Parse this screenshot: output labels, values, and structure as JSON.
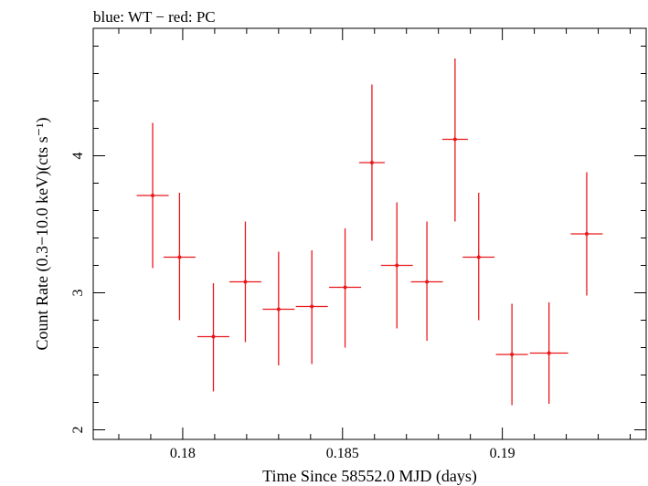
{
  "chart_data": {
    "type": "scatter",
    "title": "blue: WT − red: PC",
    "xlabel": "Time Since 58552.0 MJD (days)",
    "ylabel": "Count Rate (0.3−10.0 keV)(cts s⁻¹)",
    "xlim": [
      0.1772,
      0.1945
    ],
    "ylim": [
      1.93,
      4.93
    ],
    "xticks": [
      {
        "value": 0.18,
        "label": "0.18"
      },
      {
        "value": 0.185,
        "label": "0.185"
      },
      {
        "value": 0.19,
        "label": "0.19"
      }
    ],
    "yticks": [
      {
        "value": 2,
        "label": "2"
      },
      {
        "value": 3,
        "label": "3"
      },
      {
        "value": 4,
        "label": "4"
      }
    ],
    "grid": false,
    "series": [
      {
        "color": "#e8191c",
        "points": [
          {
            "x": 0.17906,
            "y": 3.71,
            "xerr": 0.0005,
            "ylo": 3.18,
            "yhi": 4.24
          },
          {
            "x": 0.1799,
            "y": 3.26,
            "xerr": 0.0005,
            "ylo": 2.8,
            "yhi": 3.73
          },
          {
            "x": 0.18096,
            "y": 2.68,
            "xerr": 0.0005,
            "ylo": 2.28,
            "yhi": 3.07
          },
          {
            "x": 0.18196,
            "y": 3.08,
            "xerr": 0.0005,
            "ylo": 2.64,
            "yhi": 3.52
          },
          {
            "x": 0.183,
            "y": 2.88,
            "xerr": 0.0005,
            "ylo": 2.47,
            "yhi": 3.3
          },
          {
            "x": 0.18404,
            "y": 2.9,
            "xerr": 0.0005,
            "ylo": 2.48,
            "yhi": 3.31
          },
          {
            "x": 0.18508,
            "y": 3.04,
            "xerr": 0.0005,
            "ylo": 2.6,
            "yhi": 3.47
          },
          {
            "x": 0.18592,
            "y": 3.95,
            "xerr": 0.0004,
            "ylo": 3.38,
            "yhi": 4.52
          },
          {
            "x": 0.1867,
            "y": 3.2,
            "xerr": 0.0005,
            "ylo": 2.74,
            "yhi": 3.66
          },
          {
            "x": 0.18764,
            "y": 3.08,
            "xerr": 0.0005,
            "ylo": 2.65,
            "yhi": 3.52
          },
          {
            "x": 0.18852,
            "y": 4.12,
            "xerr": 0.0004,
            "ylo": 3.52,
            "yhi": 4.71
          },
          {
            "x": 0.18926,
            "y": 3.26,
            "xerr": 0.0005,
            "ylo": 2.8,
            "yhi": 3.73
          },
          {
            "x": 0.1903,
            "y": 2.55,
            "xerr": 0.0005,
            "ylo": 2.18,
            "yhi": 2.92
          },
          {
            "x": 0.19146,
            "y": 2.56,
            "xerr": 0.0006,
            "ylo": 2.19,
            "yhi": 2.93
          },
          {
            "x": 0.19264,
            "y": 3.43,
            "xerr": 0.0005,
            "ylo": 2.98,
            "yhi": 3.88
          }
        ]
      }
    ]
  }
}
